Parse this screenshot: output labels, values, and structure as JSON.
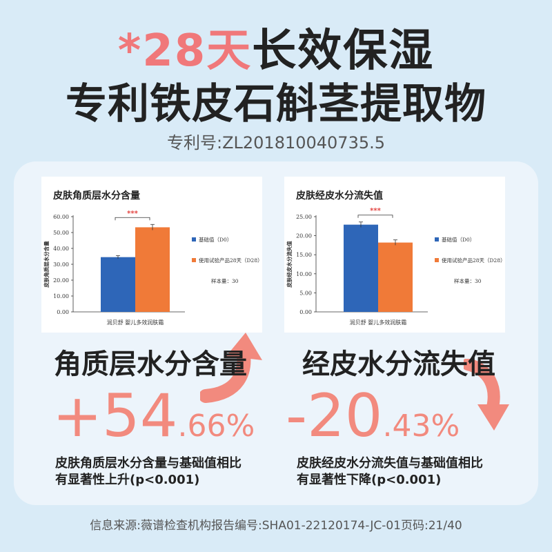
{
  "header": {
    "title_highlight": "*28天",
    "title_rest": "长效保湿",
    "subtitle": "专利铁皮石斛茎提取物",
    "patent": "专利号:ZL201810040735.5"
  },
  "chart_data": [
    {
      "type": "bar",
      "title": "皮肤角质层水分含量",
      "ylabel": "皮肤角质层水分含量",
      "xlabel": "润贝舒 婴儿多效润肤霜",
      "ylim": [
        0,
        60
      ],
      "yticks": [
        "0.00",
        "10.00",
        "20.00",
        "30.00",
        "40.00",
        "50.00",
        "60.00"
      ],
      "series": [
        {
          "name": "基础值（D0）",
          "value": 34.5,
          "error": 1.0,
          "color": "#2e66b8"
        },
        {
          "name": "使用试验产品28天（D28）",
          "value": 53.3,
          "error": 1.8,
          "color": "#f07a38"
        }
      ],
      "significance": "***",
      "sample_note": "样本量：30",
      "legend": "right"
    },
    {
      "type": "bar",
      "title": "皮肤经皮水分流失值",
      "ylabel": "皮肤经皮水分流失值",
      "xlabel": "润贝舒 婴儿多效润肤霜",
      "ylim": [
        0,
        25
      ],
      "yticks": [
        "0.00",
        "5.00",
        "10.00",
        "15.00",
        "20.00",
        "25.00"
      ],
      "series": [
        {
          "name": "基础值（D0）",
          "value": 22.9,
          "error": 0.7,
          "color": "#2e66b8"
        },
        {
          "name": "使用试验产品28天（D28）",
          "value": 18.2,
          "error": 0.7,
          "color": "#f07a38"
        }
      ],
      "significance": "***",
      "sample_note": "样本量：30",
      "legend": "right"
    }
  ],
  "left_stat": {
    "title": "角质层水分含量",
    "value_main": "+54",
    "value_frac": ".66%",
    "note_line1": "皮肤角质层水分含量与基础值相比",
    "note_line2": "有显著性上升(p<0.001)"
  },
  "right_stat": {
    "title": "经皮水分流失值",
    "value_main": "-20",
    "value_frac": ".43%",
    "note_line1": "皮肤经皮水分流失值与基础值相比",
    "note_line2": "有显著性下降(p<0.001)"
  },
  "footer": "信息来源:薇谱检查机构报告编号:SHA01-22120174-JC-01页码:21/40",
  "colors": {
    "accent": "#f28a7e",
    "blue_bar": "#2e66b8",
    "orange_bar": "#f07a38"
  }
}
